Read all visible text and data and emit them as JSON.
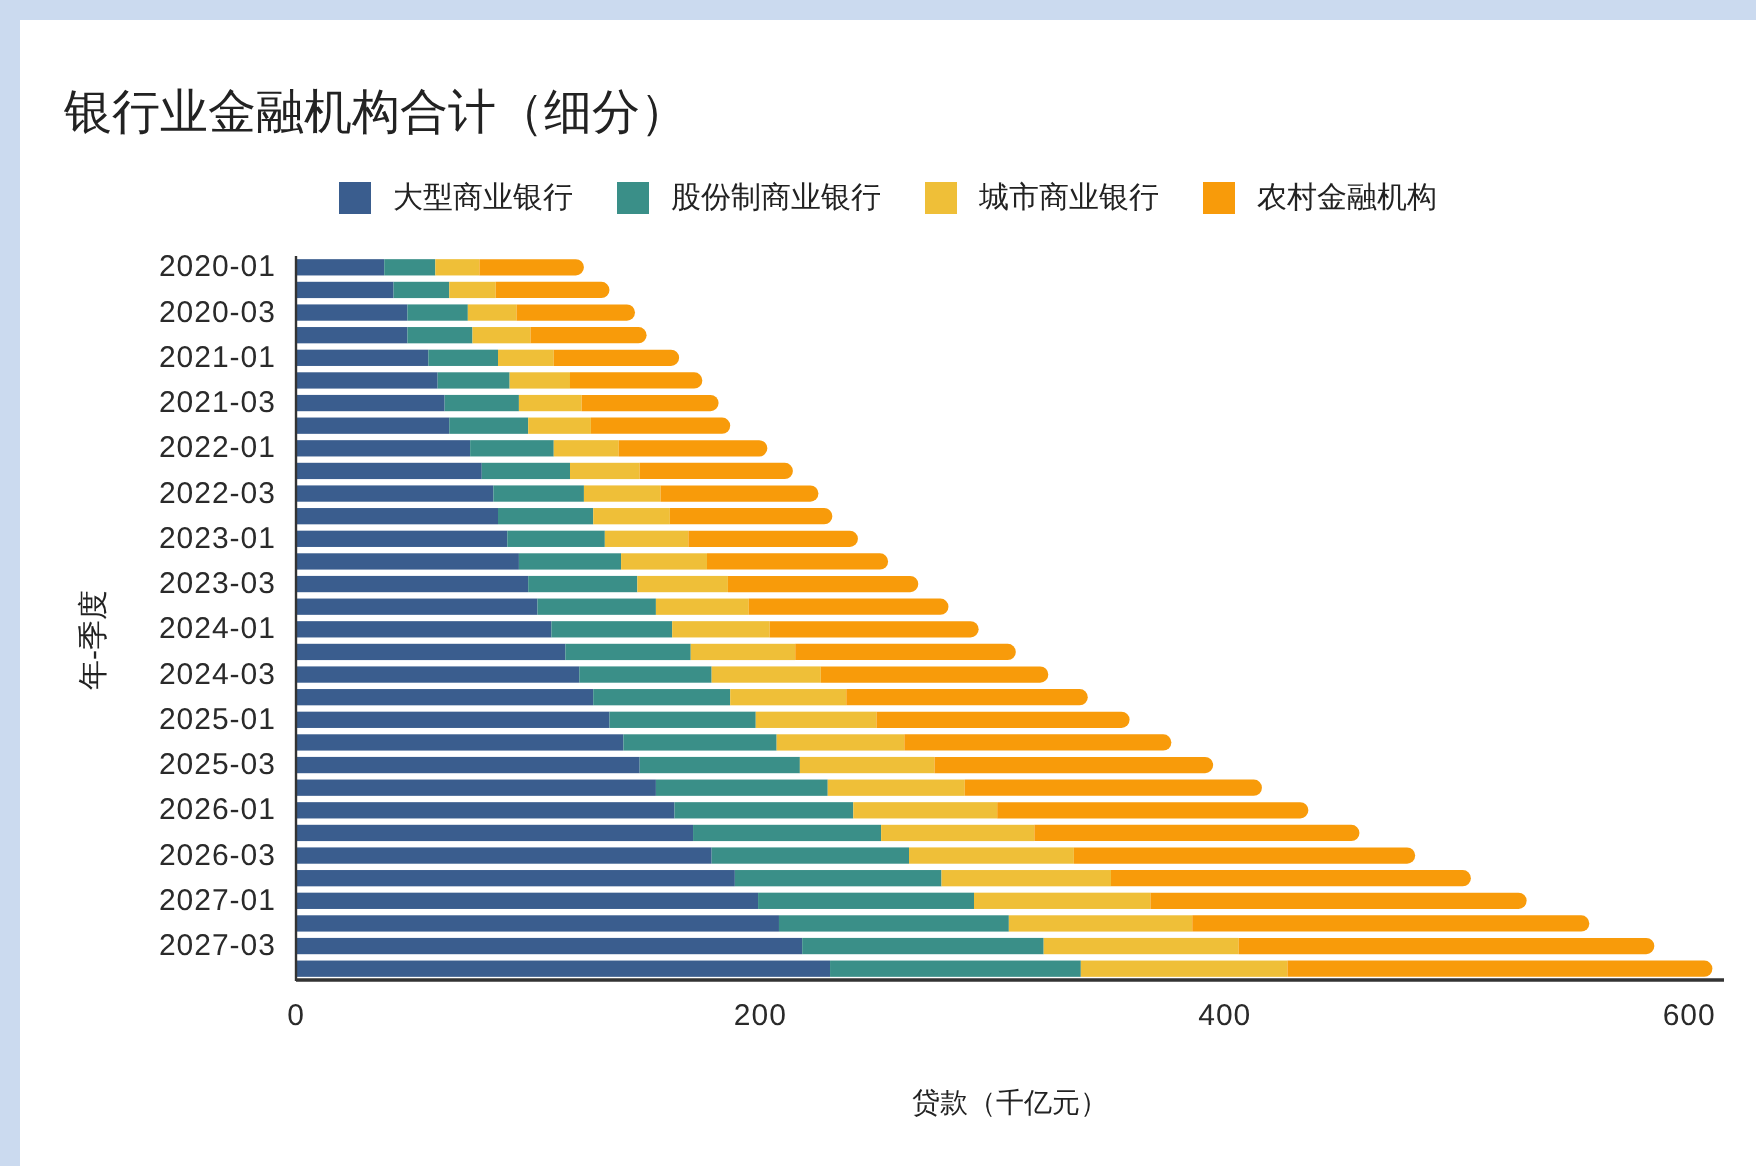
{
  "chart_data": {
    "type": "bar",
    "orientation": "horizontal",
    "stacked": true,
    "title": "银行业金融机构合计（细分）",
    "xlabel": "贷款（千亿元）",
    "ylabel": "年-季度",
    "legend": "top",
    "categories": [
      "2020-01",
      null,
      "2020-03",
      null,
      "2021-01",
      null,
      "2021-03",
      null,
      "2022-01",
      null,
      "2022-03",
      null,
      "2023-01",
      null,
      "2023-03",
      null,
      "2024-01",
      null,
      "2024-03",
      null,
      "2025-01",
      null,
      "2025-03",
      null,
      "2026-01",
      null,
      "2026-03",
      null,
      "2027-01",
      null,
      "2027-03",
      null
    ],
    "series": [
      {
        "name": "大型商业银行",
        "color": "#3a5d8e",
        "values": [
          38,
          42,
          48,
          48,
          57,
          61,
          64,
          66,
          75,
          80,
          85,
          87,
          91,
          96,
          100,
          104,
          110,
          116,
          122,
          128,
          135,
          141,
          148,
          155,
          163,
          171,
          179,
          189,
          199,
          208,
          218,
          230
        ]
      },
      {
        "name": "股份制商业银行",
        "color": "#3a8f88",
        "values": [
          22,
          24,
          26,
          28,
          30,
          31,
          32,
          34,
          36,
          38,
          39,
          41,
          42,
          44,
          47,
          51,
          52,
          54,
          57,
          59,
          63,
          66,
          69,
          74,
          77,
          81,
          85,
          89,
          93,
          99,
          104,
          108
        ]
      },
      {
        "name": "城市商业银行",
        "color": "#efbf38",
        "values": [
          19,
          20,
          21,
          25,
          24,
          26,
          27,
          27,
          28,
          30,
          33,
          33,
          36,
          37,
          39,
          40,
          42,
          45,
          47,
          50,
          52,
          55,
          58,
          59,
          62,
          66,
          71,
          73,
          76,
          79,
          84,
          89
        ]
      },
      {
        "name": "农村金融机构",
        "color": "#f89b0a",
        "values": [
          45,
          49,
          51,
          50,
          54,
          57,
          59,
          60,
          64,
          66,
          68,
          70,
          73,
          78,
          82,
          86,
          90,
          95,
          98,
          104,
          109,
          115,
          120,
          128,
          134,
          140,
          147,
          155,
          162,
          171,
          179,
          183
        ]
      }
    ],
    "xlim": [
      0,
      615
    ],
    "xticks": [
      0,
      200,
      400,
      600
    ]
  }
}
